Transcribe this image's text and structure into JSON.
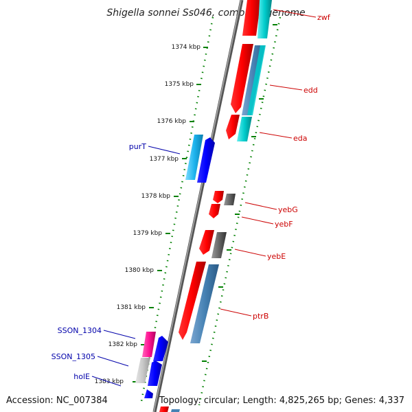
{
  "title": "Shigella sonnei Ss046, complete genome",
  "accession": "Accession: NC_007384",
  "topology": "Topology: circular; Length: 4,825,265 bp; Genes: 4,337",
  "ticks": [
    "1374 kbp",
    "1375 kbp",
    "1376 kbp",
    "1377 kbp",
    "1378 kbp",
    "1379 kbp",
    "1380 kbp",
    "1381 kbp",
    "1382 kbp",
    "1383 kbp"
  ],
  "genes_forward": [
    {
      "name": "zwf",
      "color": "#ff0000"
    },
    {
      "name": "edd",
      "color": "#ff0000"
    },
    {
      "name": "eda",
      "color": "#ff0000"
    },
    {
      "name": "yebG",
      "color": "#ff0000"
    },
    {
      "name": "yebF",
      "color": "#ff0000"
    },
    {
      "name": "yebE",
      "color": "#ff0000"
    },
    {
      "name": "ptrB",
      "color": "#ff0000"
    }
  ],
  "genes_reverse": [
    {
      "name": "purT",
      "color": "#0000ff"
    },
    {
      "name": "SSON_1304",
      "color": "#0000ff"
    },
    {
      "name": "SSON_1305",
      "color": "#0000ff"
    },
    {
      "name": "holE",
      "color": "#0000ff"
    }
  ],
  "colors": {
    "forward_cds": "#ff0000",
    "reverse_cds": "#0000ff",
    "cog_cyan": "#00cccc",
    "cog_steelblue": "#4682b4",
    "cog_gray": "#666666",
    "cog_magenta": "#ff1493",
    "cog_lightblue": "#1eb4ee",
    "backbone": "#888888",
    "tick": "#008000",
    "label_forward": "#cc0000",
    "label_reverse": "#0000aa"
  }
}
